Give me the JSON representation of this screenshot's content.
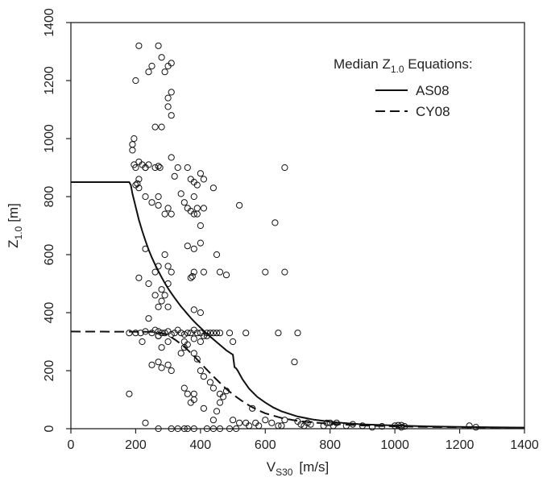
{
  "chart_data": {
    "type": "scatter",
    "xlim": [
      0,
      1400
    ],
    "ylim": [
      0,
      1400
    ],
    "xticks": [
      0,
      200,
      400,
      600,
      800,
      1000,
      1200,
      1400
    ],
    "yticks": [
      0,
      200,
      400,
      600,
      800,
      1000,
      1200,
      1400
    ],
    "xlabel": {
      "main": "V",
      "sub": "S30",
      "unit": "[m/s]"
    },
    "ylabel": {
      "main": "Z",
      "sub": "1.0",
      "unit": "[m]"
    },
    "legend": {
      "title_main": "Median Z",
      "title_sub": "1.0",
      "title_rest": " Equations:",
      "placement": "top-right",
      "entries": [
        {
          "label": "AS08",
          "style": "solid"
        },
        {
          "label": "CY08",
          "style": "dashed"
        }
      ]
    },
    "curves": [
      {
        "name": "AS08",
        "style": "solid",
        "points": [
          [
            0,
            850
          ],
          [
            180,
            850
          ],
          [
            185,
            840
          ],
          [
            190,
            810
          ],
          [
            200,
            765
          ],
          [
            210,
            720
          ],
          [
            220,
            682
          ],
          [
            230,
            648
          ],
          [
            240,
            617
          ],
          [
            250,
            590
          ],
          [
            260,
            565
          ],
          [
            270,
            543
          ],
          [
            280,
            522
          ],
          [
            290,
            502
          ],
          [
            300,
            484
          ],
          [
            310,
            467
          ],
          [
            320,
            451
          ],
          [
            330,
            436
          ],
          [
            340,
            421
          ],
          [
            350,
            408
          ],
          [
            360,
            395
          ],
          [
            370,
            382
          ],
          [
            380,
            370
          ],
          [
            390,
            359
          ],
          [
            400,
            348
          ],
          [
            420,
            327
          ],
          [
            440,
            308
          ],
          [
            460,
            289
          ],
          [
            480,
            270
          ],
          [
            500,
            255
          ],
          [
            505,
            212
          ],
          [
            510,
            208
          ],
          [
            515,
            200
          ],
          [
            530,
            170
          ],
          [
            550,
            138
          ],
          [
            575,
            110
          ],
          [
            600,
            90
          ],
          [
            625,
            73
          ],
          [
            650,
            60
          ],
          [
            700,
            42
          ],
          [
            750,
            31
          ],
          [
            800,
            24
          ],
          [
            850,
            19
          ],
          [
            900,
            15
          ],
          [
            1000,
            11
          ],
          [
            1100,
            8
          ],
          [
            1200,
            6
          ],
          [
            1300,
            5
          ],
          [
            1400,
            4
          ]
        ]
      },
      {
        "name": "CY08",
        "style": "dashed",
        "points": [
          [
            0,
            335
          ],
          [
            250,
            334
          ],
          [
            280,
            330
          ],
          [
            300,
            322
          ],
          [
            320,
            308
          ],
          [
            340,
            292
          ],
          [
            360,
            272
          ],
          [
            380,
            250
          ],
          [
            400,
            226
          ],
          [
            420,
            203
          ],
          [
            440,
            180
          ],
          [
            460,
            158
          ],
          [
            480,
            137
          ],
          [
            500,
            118
          ],
          [
            525,
            98
          ],
          [
            550,
            80
          ],
          [
            575,
            65
          ],
          [
            600,
            53
          ],
          [
            650,
            37
          ],
          [
            700,
            27
          ],
          [
            750,
            21
          ],
          [
            800,
            17
          ],
          [
            850,
            14
          ],
          [
            900,
            11
          ],
          [
            1000,
            8
          ],
          [
            1100,
            6
          ],
          [
            1200,
            5
          ],
          [
            1300,
            4
          ],
          [
            1400,
            3
          ]
        ]
      }
    ],
    "points": [
      [
        200,
        1200
      ],
      [
        210,
        1320
      ],
      [
        240,
        1230
      ],
      [
        250,
        1250
      ],
      [
        270,
        1320
      ],
      [
        280,
        1280
      ],
      [
        290,
        1230
      ],
      [
        300,
        1250
      ],
      [
        310,
        1260
      ],
      [
        300,
        1140
      ],
      [
        310,
        1160
      ],
      [
        300,
        1110
      ],
      [
        310,
        1080
      ],
      [
        260,
        1040
      ],
      [
        280,
        1040
      ],
      [
        190,
        960
      ],
      [
        195,
        1000
      ],
      [
        190,
        980
      ],
      [
        195,
        910
      ],
      [
        200,
        900
      ],
      [
        210,
        920
      ],
      [
        220,
        910
      ],
      [
        230,
        900
      ],
      [
        240,
        910
      ],
      [
        200,
        840
      ],
      [
        205,
        845
      ],
      [
        210,
        860
      ],
      [
        210,
        830
      ],
      [
        230,
        900
      ],
      [
        260,
        900
      ],
      [
        270,
        905
      ],
      [
        275,
        900
      ],
      [
        310,
        935
      ],
      [
        330,
        900
      ],
      [
        360,
        900
      ],
      [
        370,
        860
      ],
      [
        380,
        850
      ],
      [
        390,
        840
      ],
      [
        400,
        880
      ],
      [
        410,
        860
      ],
      [
        440,
        830
      ],
      [
        660,
        900
      ],
      [
        230,
        800
      ],
      [
        250,
        780
      ],
      [
        270,
        800
      ],
      [
        290,
        740
      ],
      [
        300,
        760
      ],
      [
        310,
        740
      ],
      [
        320,
        870
      ],
      [
        340,
        810
      ],
      [
        350,
        780
      ],
      [
        360,
        760
      ],
      [
        380,
        800
      ],
      [
        390,
        760
      ],
      [
        380,
        740
      ],
      [
        370,
        750
      ],
      [
        390,
        740
      ],
      [
        400,
        700
      ],
      [
        410,
        760
      ],
      [
        270,
        770
      ],
      [
        230,
        620
      ],
      [
        210,
        520
      ],
      [
        240,
        500
      ],
      [
        260,
        540
      ],
      [
        270,
        560
      ],
      [
        290,
        600
      ],
      [
        280,
        480
      ],
      [
        300,
        560
      ],
      [
        310,
        540
      ],
      [
        300,
        500
      ],
      [
        360,
        630
      ],
      [
        380,
        620
      ],
      [
        400,
        640
      ],
      [
        370,
        520
      ],
      [
        375,
        525
      ],
      [
        380,
        540
      ],
      [
        410,
        540
      ],
      [
        450,
        600
      ],
      [
        460,
        540
      ],
      [
        480,
        530
      ],
      [
        520,
        770
      ],
      [
        630,
        710
      ],
      [
        600,
        540
      ],
      [
        660,
        540
      ],
      [
        180,
        330
      ],
      [
        200,
        330
      ],
      [
        215,
        330
      ],
      [
        230,
        335
      ],
      [
        250,
        330
      ],
      [
        260,
        340
      ],
      [
        270,
        335
      ],
      [
        270,
        320
      ],
      [
        280,
        330
      ],
      [
        290,
        330
      ],
      [
        300,
        335
      ],
      [
        310,
        325
      ],
      [
        320,
        330
      ],
      [
        330,
        340
      ],
      [
        340,
        330
      ],
      [
        350,
        325
      ],
      [
        360,
        330
      ],
      [
        370,
        330
      ],
      [
        380,
        340
      ],
      [
        390,
        330
      ],
      [
        400,
        330
      ],
      [
        410,
        320
      ],
      [
        420,
        330
      ],
      [
        430,
        330
      ],
      [
        440,
        330
      ],
      [
        450,
        330
      ],
      [
        460,
        330
      ],
      [
        350,
        300
      ],
      [
        360,
        290
      ],
      [
        380,
        310
      ],
      [
        400,
        300
      ],
      [
        420,
        320
      ],
      [
        300,
        300
      ],
      [
        280,
        280
      ],
      [
        270,
        320
      ],
      [
        260,
        460
      ],
      [
        280,
        440
      ],
      [
        300,
        420
      ],
      [
        270,
        420
      ],
      [
        290,
        460
      ],
      [
        380,
        410
      ],
      [
        400,
        400
      ],
      [
        240,
        380
      ],
      [
        220,
        300
      ],
      [
        250,
        220
      ],
      [
        270,
        230
      ],
      [
        280,
        210
      ],
      [
        300,
        220
      ],
      [
        310,
        200
      ],
      [
        340,
        260
      ],
      [
        350,
        280
      ],
      [
        380,
        260
      ],
      [
        390,
        240
      ],
      [
        400,
        200
      ],
      [
        410,
        180
      ],
      [
        430,
        160
      ],
      [
        440,
        140
      ],
      [
        460,
        120
      ],
      [
        350,
        140
      ],
      [
        360,
        120
      ],
      [
        380,
        120
      ],
      [
        380,
        100
      ],
      [
        370,
        90
      ],
      [
        410,
        70
      ],
      [
        440,
        30
      ],
      [
        450,
        60
      ],
      [
        460,
        90
      ],
      [
        470,
        110
      ],
      [
        480,
        130
      ],
      [
        500,
        300
      ],
      [
        490,
        330
      ],
      [
        540,
        330
      ],
      [
        640,
        330
      ],
      [
        700,
        330
      ],
      [
        690,
        230
      ],
      [
        180,
        120
      ],
      [
        230,
        20
      ],
      [
        270,
        0
      ],
      [
        310,
        0
      ],
      [
        330,
        0
      ],
      [
        350,
        0
      ],
      [
        360,
        0
      ],
      [
        380,
        0
      ],
      [
        420,
        0
      ],
      [
        440,
        0
      ],
      [
        460,
        0
      ],
      [
        490,
        0
      ],
      [
        510,
        0
      ],
      [
        520,
        20
      ],
      [
        500,
        30
      ],
      [
        540,
        20
      ],
      [
        550,
        10
      ],
      [
        560,
        70
      ],
      [
        570,
        20
      ],
      [
        580,
        10
      ],
      [
        600,
        30
      ],
      [
        620,
        20
      ],
      [
        640,
        10
      ],
      [
        650,
        10
      ],
      [
        660,
        30
      ],
      [
        700,
        25
      ],
      [
        710,
        15
      ],
      [
        720,
        10
      ],
      [
        730,
        20
      ],
      [
        740,
        15
      ],
      [
        780,
        10
      ],
      [
        790,
        20
      ],
      [
        800,
        20
      ],
      [
        810,
        10
      ],
      [
        820,
        20
      ],
      [
        850,
        10
      ],
      [
        870,
        15
      ],
      [
        900,
        10
      ],
      [
        930,
        5
      ],
      [
        960,
        8
      ],
      [
        1000,
        10
      ],
      [
        1010,
        12
      ],
      [
        1020,
        5
      ],
      [
        1030,
        8
      ],
      [
        1020,
        12
      ],
      [
        1230,
        10
      ],
      [
        1250,
        5
      ]
    ]
  }
}
